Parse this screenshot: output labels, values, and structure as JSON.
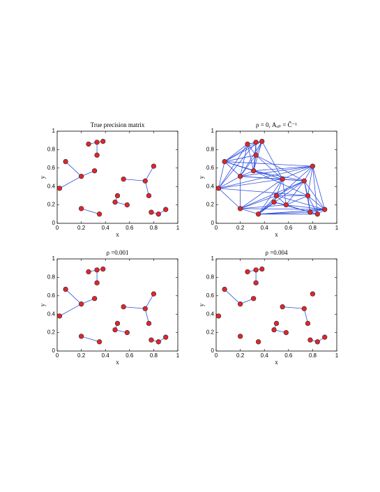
{
  "chart_data": [
    {
      "type": "graph",
      "title": "True precision matrix",
      "xlabel": "x",
      "ylabel": "y",
      "x": [
        0.02,
        0.07,
        0.2,
        0.31,
        0.26,
        0.33,
        0.38,
        0.33,
        0.2,
        0.35,
        0.55,
        0.73,
        0.8,
        0.76,
        0.5,
        0.48,
        0.58,
        0.78,
        0.84,
        0.9
      ],
      "y": [
        0.38,
        0.67,
        0.51,
        0.57,
        0.86,
        0.88,
        0.89,
        0.74,
        0.16,
        0.1,
        0.48,
        0.46,
        0.62,
        0.3,
        0.3,
        0.23,
        0.2,
        0.12,
        0.1,
        0.15
      ],
      "edges": [
        [
          0,
          2
        ],
        [
          1,
          2
        ],
        [
          2,
          3
        ],
        [
          4,
          5
        ],
        [
          5,
          6
        ],
        [
          5,
          7
        ],
        [
          8,
          9
        ],
        [
          10,
          11
        ],
        [
          11,
          12
        ],
        [
          11,
          13
        ],
        [
          14,
          15
        ],
        [
          15,
          16
        ],
        [
          17,
          18
        ],
        [
          18,
          19
        ]
      ],
      "xlim": [
        0,
        1
      ],
      "ylim": [
        0,
        1
      ],
      "xticks": [
        0,
        0.2,
        0.4,
        0.6,
        0.8,
        1
      ],
      "yticks": [
        0,
        0.2,
        0.4,
        0.6,
        0.8,
        1
      ],
      "color": "#e8222a",
      "edge_color": "#2f4fe0"
    },
    {
      "type": "graph",
      "title": "ρ = 0, Aₒₚ = Ĉ⁻¹",
      "xlabel": "x",
      "ylabel": "y",
      "x": [
        0.02,
        0.07,
        0.2,
        0.31,
        0.26,
        0.33,
        0.38,
        0.33,
        0.2,
        0.35,
        0.55,
        0.73,
        0.8,
        0.76,
        0.5,
        0.48,
        0.58,
        0.78,
        0.84,
        0.9
      ],
      "y": [
        0.38,
        0.67,
        0.51,
        0.57,
        0.86,
        0.88,
        0.89,
        0.74,
        0.16,
        0.1,
        0.48,
        0.46,
        0.62,
        0.3,
        0.3,
        0.23,
        0.2,
        0.12,
        0.1,
        0.15
      ],
      "edges": [
        [
          0,
          1
        ],
        [
          0,
          2
        ],
        [
          0,
          4
        ],
        [
          0,
          5
        ],
        [
          0,
          8
        ],
        [
          0,
          10
        ],
        [
          0,
          12
        ],
        [
          0,
          13
        ],
        [
          1,
          2
        ],
        [
          1,
          3
        ],
        [
          1,
          4
        ],
        [
          1,
          5
        ],
        [
          1,
          6
        ],
        [
          1,
          7
        ],
        [
          1,
          10
        ],
        [
          1,
          12
        ],
        [
          2,
          3
        ],
        [
          2,
          4
        ],
        [
          2,
          6
        ],
        [
          2,
          7
        ],
        [
          2,
          8
        ],
        [
          2,
          10
        ],
        [
          2,
          11
        ],
        [
          3,
          4
        ],
        [
          3,
          5
        ],
        [
          3,
          6
        ],
        [
          3,
          7
        ],
        [
          3,
          10
        ],
        [
          3,
          11
        ],
        [
          3,
          12
        ],
        [
          4,
          5
        ],
        [
          4,
          6
        ],
        [
          4,
          7
        ],
        [
          5,
          6
        ],
        [
          5,
          7
        ],
        [
          6,
          7
        ],
        [
          6,
          10
        ],
        [
          7,
          10
        ],
        [
          7,
          11
        ],
        [
          8,
          9
        ],
        [
          8,
          10
        ],
        [
          8,
          11
        ],
        [
          8,
          14
        ],
        [
          8,
          19
        ],
        [
          9,
          10
        ],
        [
          9,
          11
        ],
        [
          9,
          14
        ],
        [
          9,
          15
        ],
        [
          9,
          17
        ],
        [
          9,
          18
        ],
        [
          9,
          19
        ],
        [
          10,
          11
        ],
        [
          10,
          12
        ],
        [
          10,
          14
        ],
        [
          10,
          16
        ],
        [
          11,
          12
        ],
        [
          11,
          13
        ],
        [
          11,
          14
        ],
        [
          11,
          16
        ],
        [
          11,
          17
        ],
        [
          11,
          19
        ],
        [
          12,
          13
        ],
        [
          12,
          18
        ],
        [
          12,
          19
        ],
        [
          13,
          14
        ],
        [
          13,
          16
        ],
        [
          13,
          17
        ],
        [
          13,
          18
        ],
        [
          13,
          19
        ],
        [
          14,
          15
        ],
        [
          14,
          16
        ],
        [
          15,
          16
        ],
        [
          15,
          17
        ],
        [
          15,
          18
        ],
        [
          16,
          17
        ],
        [
          16,
          19
        ],
        [
          17,
          18
        ],
        [
          17,
          19
        ],
        [
          18,
          19
        ],
        [
          2,
          12
        ],
        [
          3,
          13
        ],
        [
          8,
          16
        ],
        [
          9,
          12
        ],
        [
          14,
          19
        ]
      ],
      "xlim": [
        0,
        1
      ],
      "ylim": [
        0,
        1
      ],
      "xticks": [
        0,
        0.2,
        0.4,
        0.6,
        0.8,
        1
      ],
      "yticks": [
        0,
        0.2,
        0.4,
        0.6,
        0.8,
        1
      ],
      "color": "#e8222a",
      "edge_color": "#2f4fe0"
    },
    {
      "type": "graph",
      "title": "ρ =0.001",
      "xlabel": "x",
      "ylabel": "y",
      "x": [
        0.02,
        0.07,
        0.2,
        0.31,
        0.26,
        0.33,
        0.38,
        0.33,
        0.2,
        0.35,
        0.55,
        0.73,
        0.8,
        0.76,
        0.5,
        0.48,
        0.58,
        0.78,
        0.84,
        0.9
      ],
      "y": [
        0.38,
        0.67,
        0.51,
        0.57,
        0.86,
        0.88,
        0.89,
        0.74,
        0.16,
        0.1,
        0.48,
        0.46,
        0.62,
        0.3,
        0.3,
        0.23,
        0.2,
        0.12,
        0.1,
        0.15
      ],
      "edges": [
        [
          0,
          2
        ],
        [
          1,
          2
        ],
        [
          2,
          3
        ],
        [
          4,
          5
        ],
        [
          5,
          6
        ],
        [
          5,
          7
        ],
        [
          8,
          9
        ],
        [
          10,
          11
        ],
        [
          11,
          12
        ],
        [
          11,
          13
        ],
        [
          14,
          15
        ],
        [
          15,
          16
        ],
        [
          17,
          18
        ],
        [
          18,
          19
        ]
      ],
      "xlim": [
        0,
        1
      ],
      "ylim": [
        0,
        1
      ],
      "xticks": [
        0,
        0.2,
        0.4,
        0.6,
        0.8,
        1
      ],
      "yticks": [
        0,
        0.2,
        0.4,
        0.6,
        0.8,
        1
      ],
      "color": "#e8222a",
      "edge_color": "#2f4fe0"
    },
    {
      "type": "graph",
      "title": "ρ =0.004",
      "xlabel": "x",
      "ylabel": "y",
      "x": [
        0.02,
        0.07,
        0.2,
        0.31,
        0.26,
        0.33,
        0.38,
        0.33,
        0.2,
        0.35,
        0.55,
        0.73,
        0.8,
        0.76,
        0.5,
        0.48,
        0.58,
        0.78,
        0.84,
        0.9
      ],
      "y": [
        0.38,
        0.67,
        0.51,
        0.57,
        0.86,
        0.88,
        0.89,
        0.74,
        0.16,
        0.1,
        0.48,
        0.46,
        0.62,
        0.3,
        0.3,
        0.23,
        0.2,
        0.12,
        0.1,
        0.15
      ],
      "edges": [
        [
          1,
          2
        ],
        [
          2,
          3
        ],
        [
          4,
          5
        ],
        [
          5,
          6
        ],
        [
          5,
          7
        ],
        [
          10,
          11
        ],
        [
          11,
          13
        ],
        [
          14,
          15
        ],
        [
          15,
          16
        ],
        [
          17,
          18
        ],
        [
          18,
          19
        ]
      ],
      "xlim": [
        0,
        1
      ],
      "ylim": [
        0,
        1
      ],
      "xticks": [
        0,
        0.2,
        0.4,
        0.6,
        0.8,
        1
      ],
      "yticks": [
        0,
        0.2,
        0.4,
        0.6,
        0.8,
        1
      ],
      "color": "#e8222a",
      "edge_color": "#2f4fe0"
    }
  ]
}
